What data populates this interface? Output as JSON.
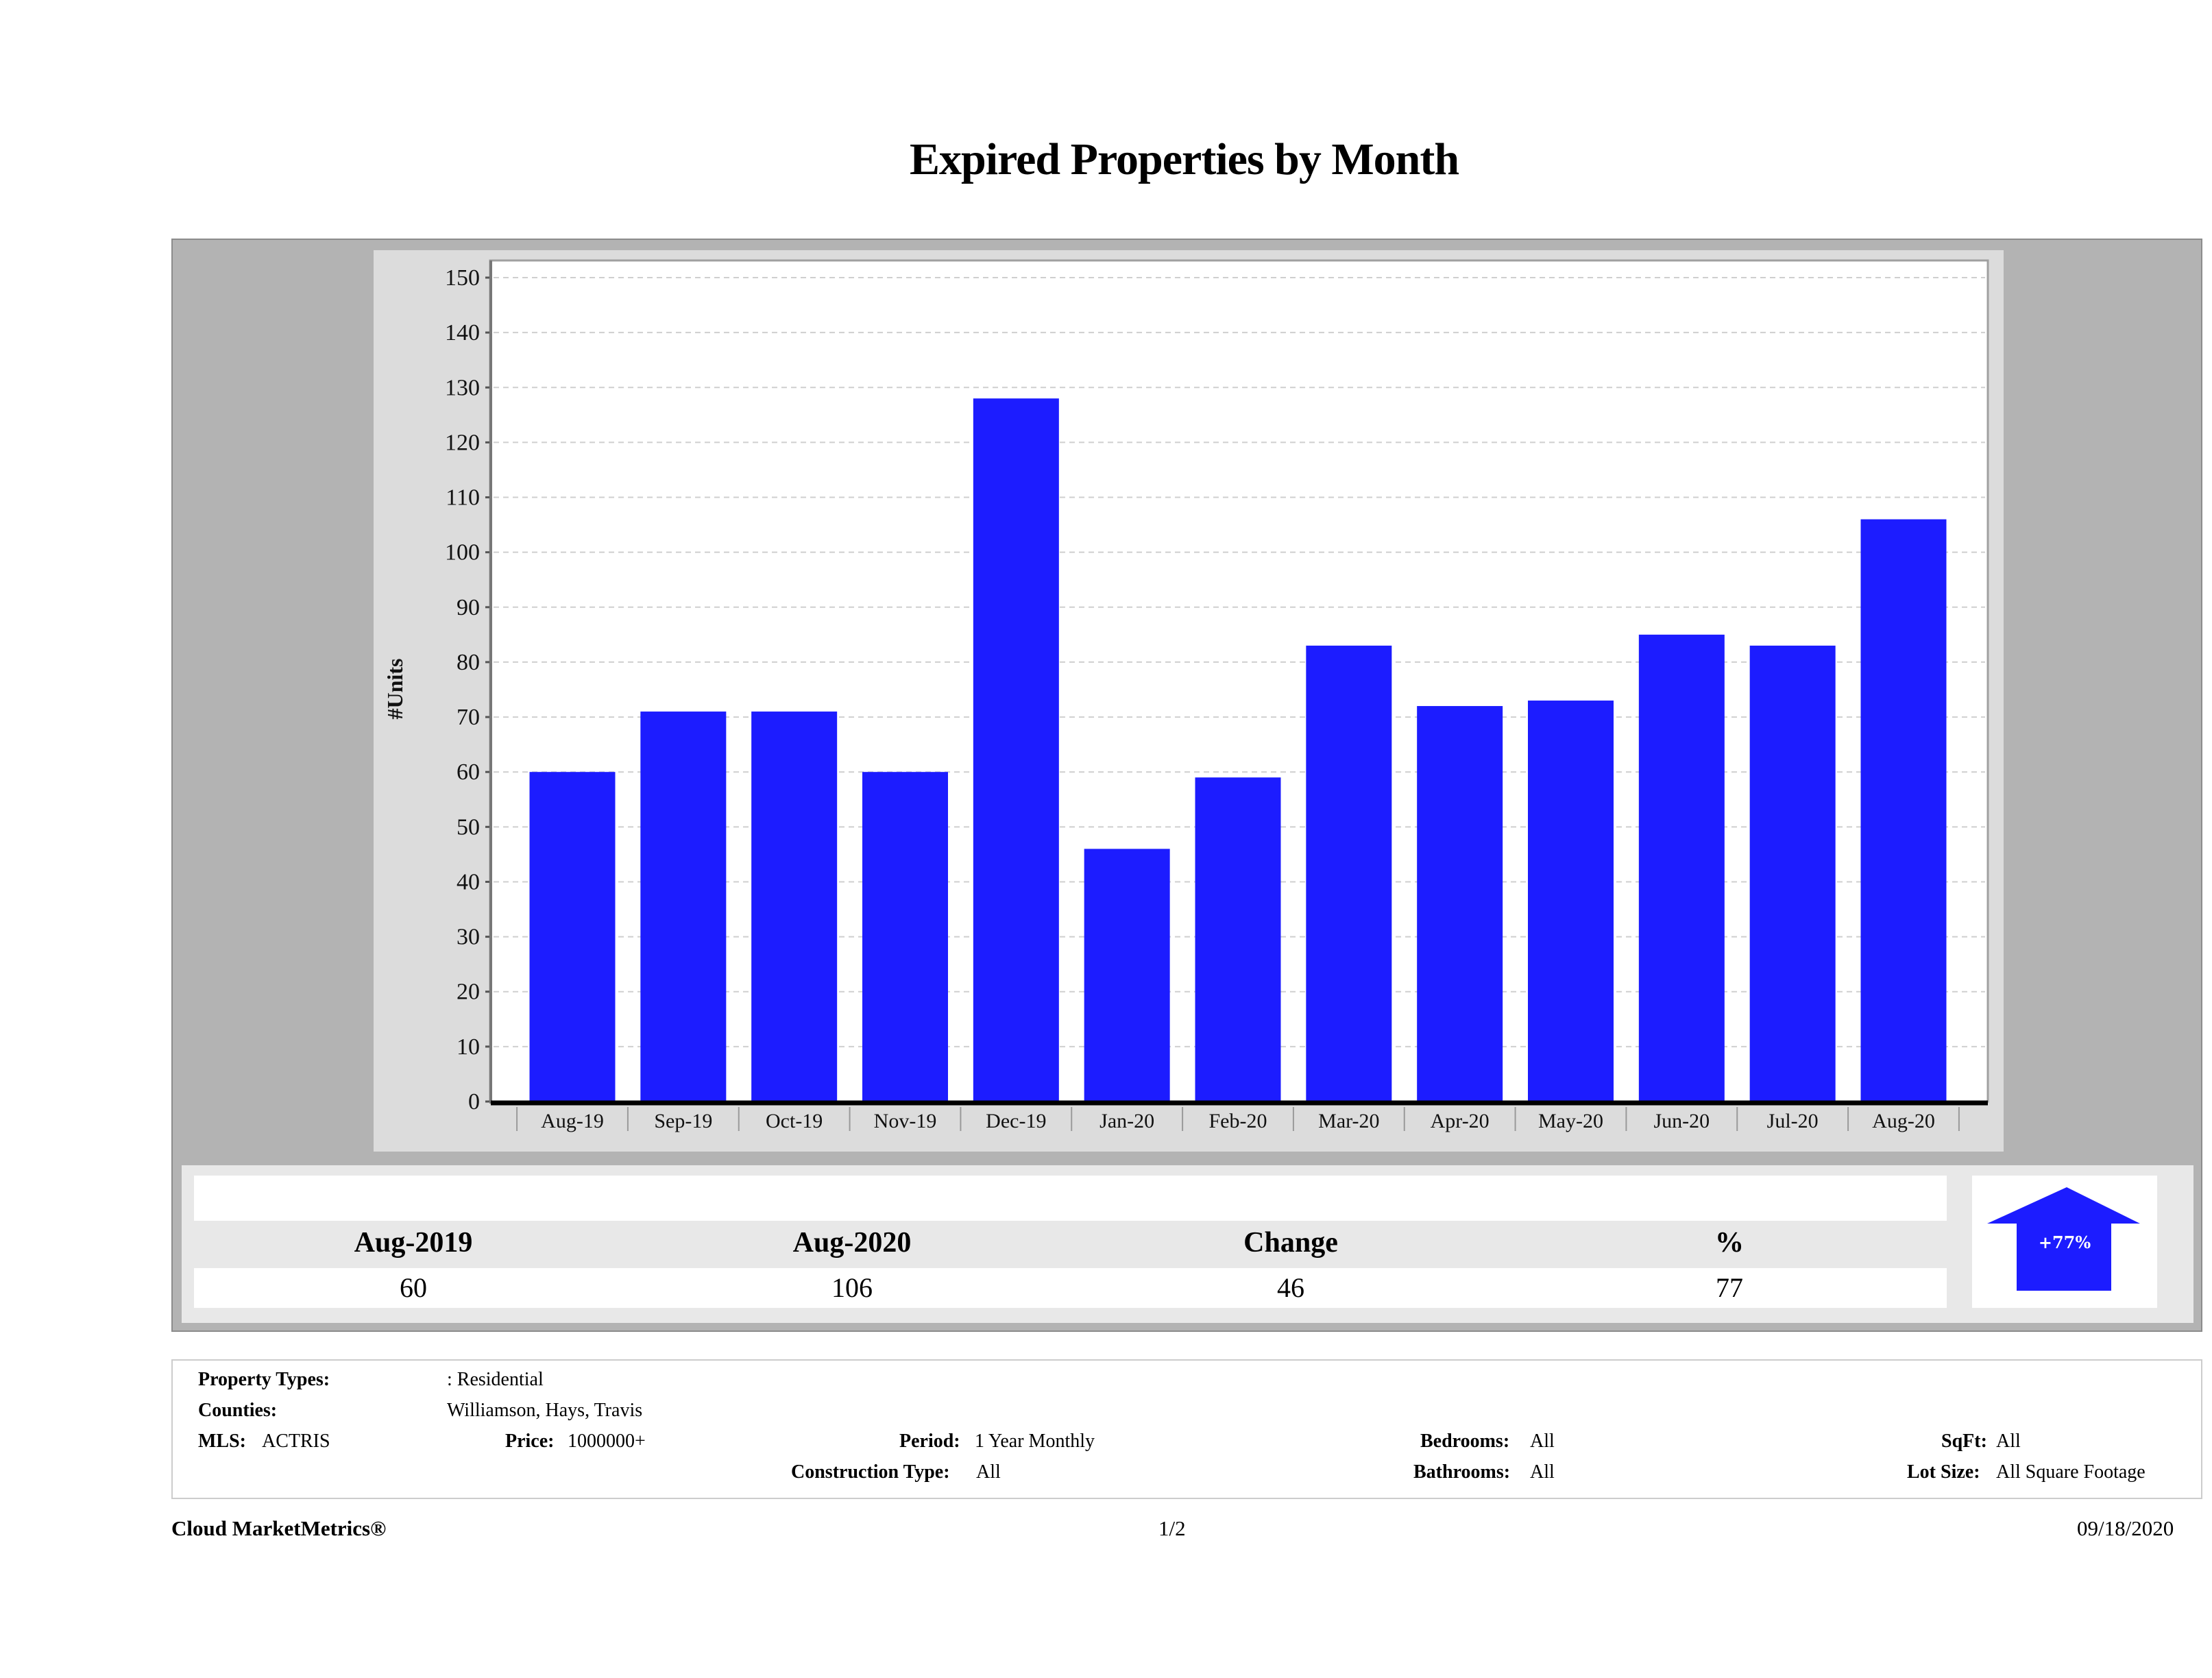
{
  "title": "Expired Properties by Month",
  "chart_data": {
    "type": "bar",
    "title": "Expired Properties by Month",
    "xlabel": "",
    "ylabel": "#Units",
    "ylim": [
      0,
      150
    ],
    "yticks": [
      0,
      10,
      20,
      30,
      40,
      50,
      60,
      70,
      80,
      90,
      100,
      110,
      120,
      130,
      140,
      150
    ],
    "grid": true,
    "categories": [
      "Aug-19",
      "Sep-19",
      "Oct-19",
      "Nov-19",
      "Dec-19",
      "Jan-20",
      "Feb-20",
      "Mar-20",
      "Apr-20",
      "May-20",
      "Jun-20",
      "Jul-20",
      "Aug-20"
    ],
    "values": [
      60,
      71,
      71,
      60,
      128,
      46,
      59,
      83,
      72,
      73,
      85,
      83,
      106
    ],
    "bar_color": "#1c1cff"
  },
  "summary": {
    "headers": [
      "Aug-2019",
      "Aug-2020",
      "Change",
      "%"
    ],
    "values": [
      "60",
      "106",
      "46",
      "77"
    ],
    "badge": "+77%",
    "arrow_icon": "up-arrow-icon",
    "arrow_color": "#1c1cff"
  },
  "filters": {
    "property_types_label": "Property Types:",
    "property_types_value": ": Residential",
    "counties_label": "Counties:",
    "counties_value": "Williamson, Hays, Travis",
    "mls_label": "MLS:",
    "mls_value": "ACTRIS",
    "price_label": "Price:",
    "price_value": "1000000+",
    "period_label": "Period:",
    "period_value": "1 Year Monthly",
    "construction_label": "Construction Type:",
    "construction_value": "All",
    "bedrooms_label": "Bedrooms:",
    "bedrooms_value": "All",
    "bathrooms_label": "Bathrooms:",
    "bathrooms_value": "All",
    "sqft_label": "SqFt:",
    "sqft_value": "All",
    "lotsize_label": "Lot Size:",
    "lotsize_value": "All Square Footage"
  },
  "footer": {
    "brand": "Cloud MarketMetrics®",
    "page": "1/2",
    "date": "09/18/2020"
  }
}
